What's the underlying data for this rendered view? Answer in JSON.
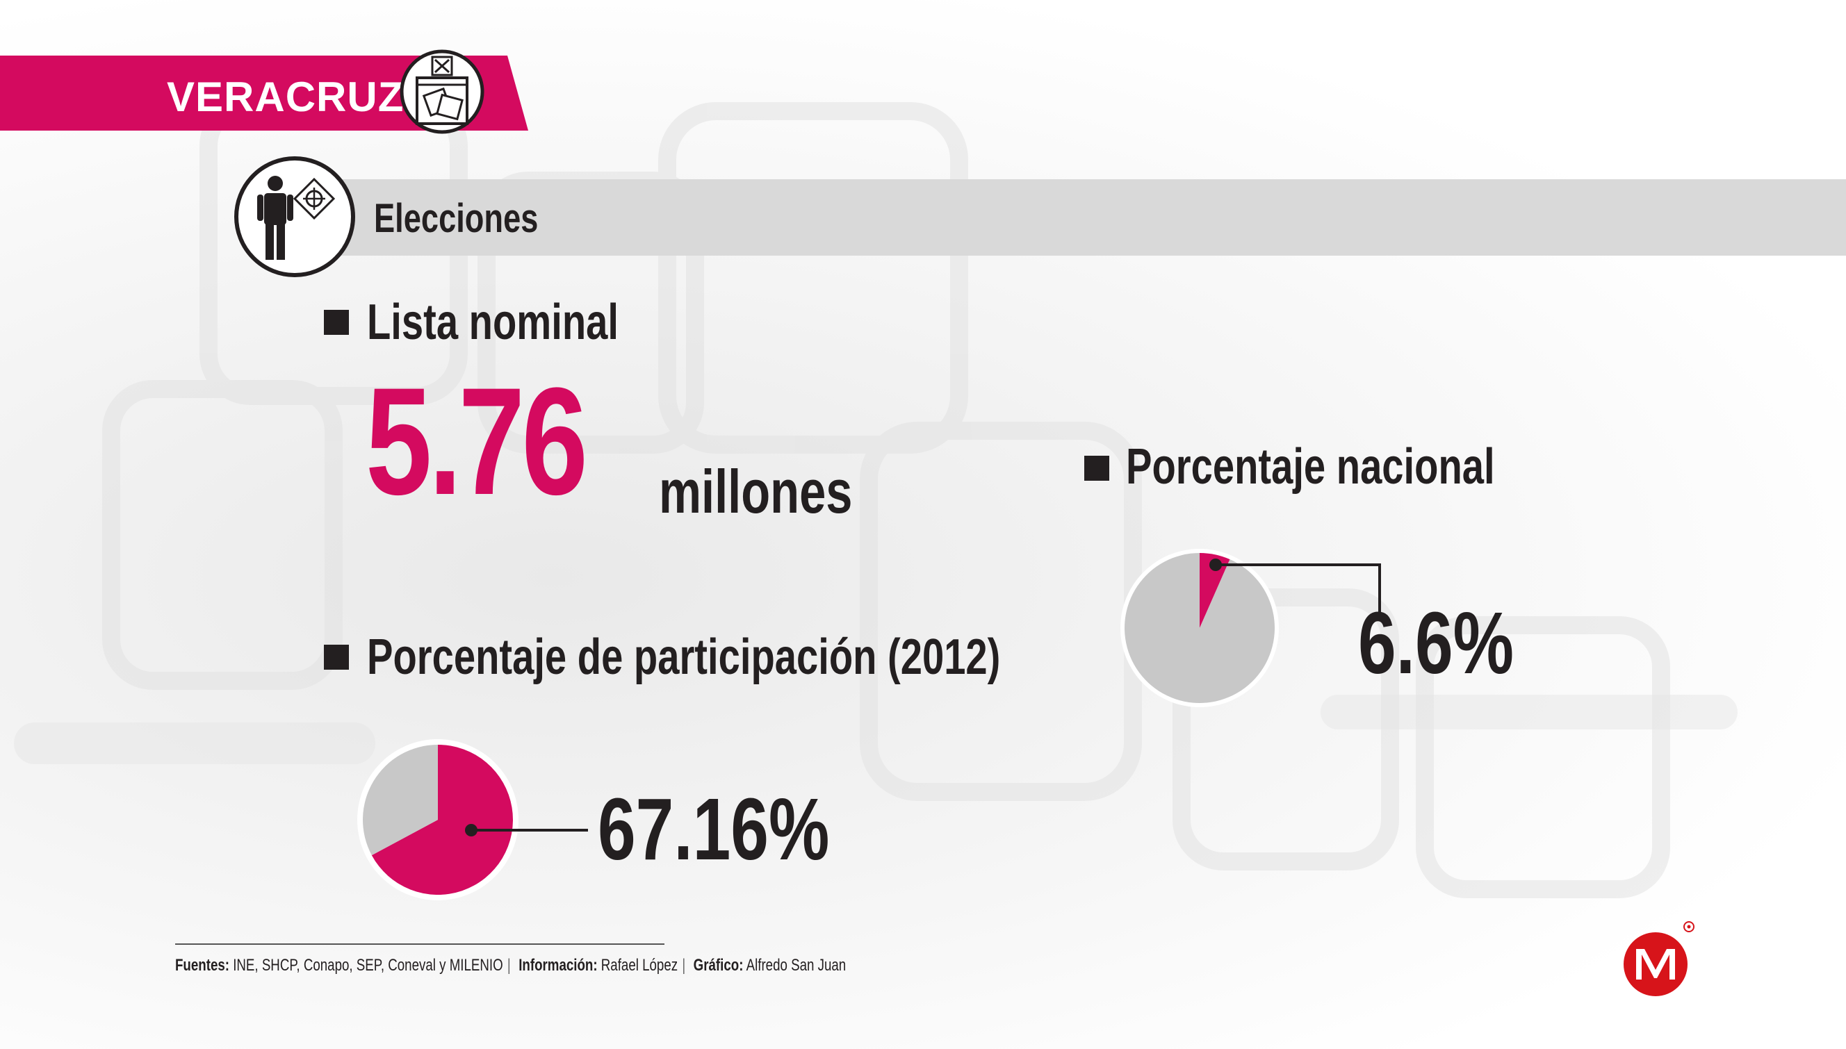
{
  "header": {
    "state": "VERACRUZ",
    "section_title": "Elecciones"
  },
  "lista_nominal": {
    "label": "Lista nominal",
    "value": "5.76",
    "unit": "millones"
  },
  "participacion": {
    "label": "Porcentaje de participación (2012)",
    "value_text": "67.16%"
  },
  "nacional": {
    "label": "Porcentaje nacional",
    "value_text": "6.6%"
  },
  "chart_data": [
    {
      "type": "pie",
      "title": "Porcentaje de participación (2012)",
      "categories": [
        "participación",
        "resto"
      ],
      "values": [
        67.16,
        32.84
      ],
      "colors": [
        "#d40a5f",
        "#c8c8c8"
      ],
      "data_label": "67.16%"
    },
    {
      "type": "pie",
      "title": "Porcentaje nacional",
      "categories": [
        "Veracruz",
        "resto"
      ],
      "values": [
        6.6,
        93.4
      ],
      "colors": [
        "#d40a5f",
        "#c8c8c8"
      ],
      "data_label": "6.6%"
    }
  ],
  "footer": {
    "sources_label": "Fuentes:",
    "sources": "INE, SHCP, Conapo, SEP, Coneval y MILENIO",
    "info_label": "Información:",
    "info": "Rafael López",
    "graphic_label": "Gráfico:",
    "graphic": "Alfredo San Juan"
  },
  "colors": {
    "accent": "#d40a5f",
    "slice_rest": "#c8c8c8",
    "bar": "#d9d9d9",
    "text": "#231f20",
    "logo": "#d7141a"
  },
  "icons": [
    "ballot-box-icon",
    "voter-icon",
    "milenio-logo"
  ]
}
